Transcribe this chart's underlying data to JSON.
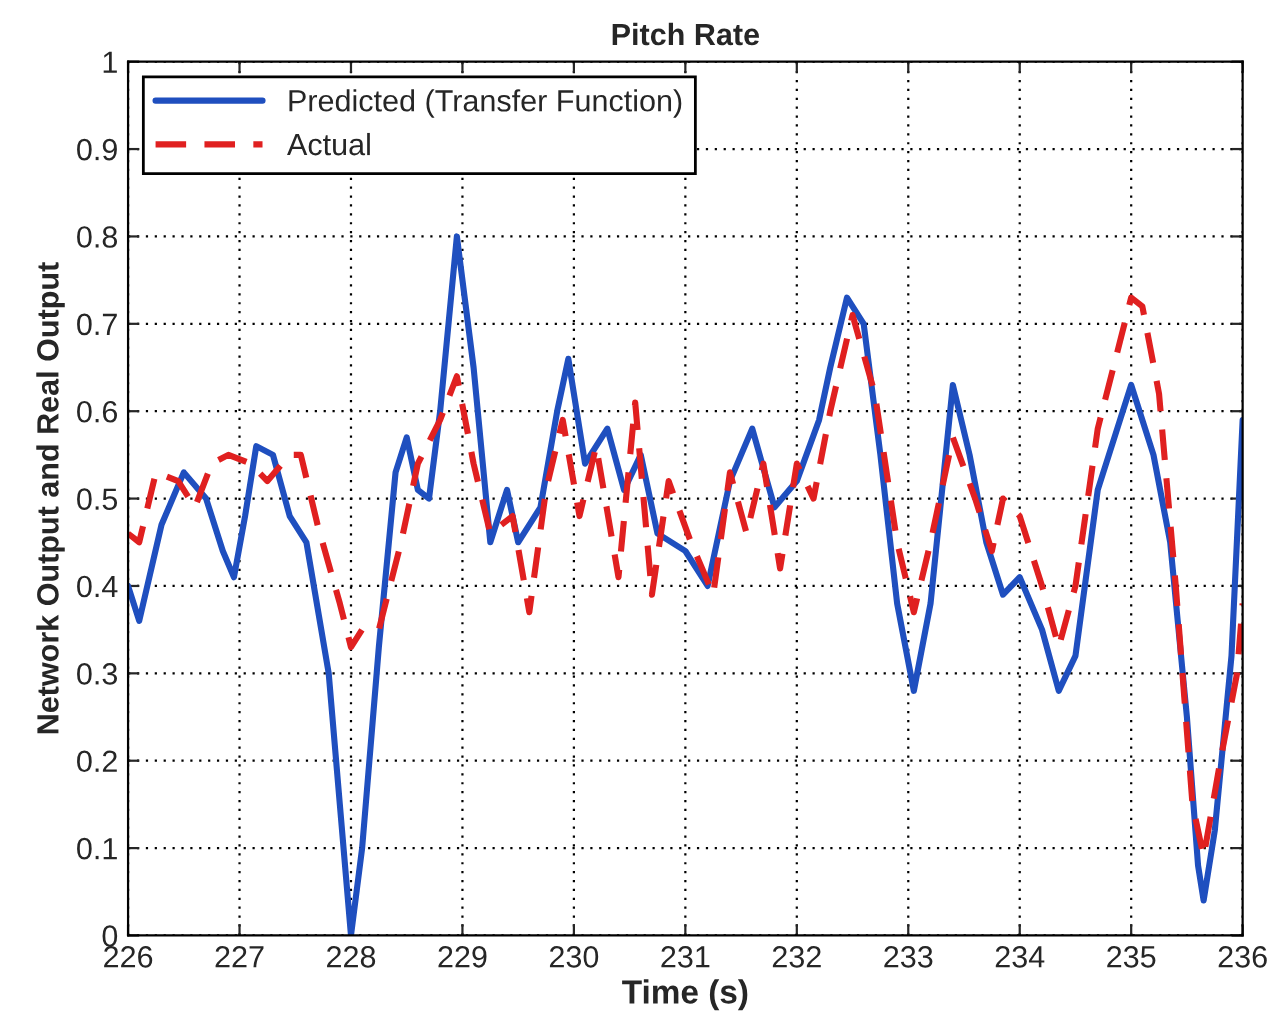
{
  "chart_data": {
    "type": "line",
    "title": "Pitch Rate",
    "xlabel": "Time (s)",
    "ylabel": "Network Output and Real Output",
    "xlim": [
      226,
      236
    ],
    "ylim": [
      0,
      1
    ],
    "xticks": [
      226,
      227,
      228,
      229,
      230,
      231,
      232,
      233,
      234,
      235,
      236
    ],
    "yticks": [
      0,
      0.1,
      0.2,
      0.3,
      0.4,
      0.5,
      0.6,
      0.7,
      0.8,
      0.9,
      1
    ],
    "grid": true,
    "legend": "top left",
    "marker": "none",
    "series": [
      {
        "name": "Predicted (Transfer Function)",
        "color": "#1f4fbf",
        "line_style": "solid",
        "x": [
          226.0,
          226.1,
          226.3,
          226.5,
          226.7,
          226.85,
          226.95,
          227.05,
          227.15,
          227.3,
          227.45,
          227.6,
          227.8,
          227.9,
          228.0,
          228.1,
          228.25,
          228.4,
          228.5,
          228.6,
          228.7,
          228.8,
          228.95,
          229.1,
          229.25,
          229.4,
          229.5,
          229.7,
          229.85,
          229.95,
          230.1,
          230.3,
          230.45,
          230.6,
          230.75,
          231.0,
          231.2,
          231.4,
          231.6,
          231.8,
          232.0,
          232.2,
          232.3,
          232.45,
          232.6,
          232.75,
          232.9,
          233.05,
          233.2,
          233.4,
          233.55,
          233.7,
          233.85,
          234.0,
          234.2,
          234.35,
          234.5,
          234.7,
          234.9,
          235.0,
          235.2,
          235.35,
          235.5,
          235.6,
          235.65,
          235.75,
          235.9,
          236.0
        ],
        "values": [
          0.4,
          0.36,
          0.47,
          0.53,
          0.5,
          0.44,
          0.41,
          0.48,
          0.56,
          0.55,
          0.48,
          0.45,
          0.3,
          0.15,
          0.0,
          0.1,
          0.33,
          0.53,
          0.57,
          0.51,
          0.5,
          0.6,
          0.8,
          0.65,
          0.45,
          0.51,
          0.45,
          0.49,
          0.6,
          0.66,
          0.54,
          0.58,
          0.51,
          0.55,
          0.46,
          0.44,
          0.4,
          0.52,
          0.58,
          0.49,
          0.52,
          0.59,
          0.65,
          0.73,
          0.7,
          0.55,
          0.38,
          0.28,
          0.38,
          0.63,
          0.55,
          0.45,
          0.39,
          0.41,
          0.35,
          0.28,
          0.32,
          0.51,
          0.59,
          0.63,
          0.55,
          0.45,
          0.25,
          0.08,
          0.04,
          0.12,
          0.32,
          0.59
        ]
      },
      {
        "name": "Actual",
        "color": "#e02020",
        "line_style": "dashed",
        "x": [
          226.0,
          226.1,
          226.25,
          226.45,
          226.6,
          226.75,
          226.9,
          227.1,
          227.25,
          227.45,
          227.55,
          227.7,
          227.9,
          228.0,
          228.1,
          228.25,
          228.45,
          228.6,
          228.8,
          228.95,
          229.1,
          229.25,
          229.45,
          229.6,
          229.75,
          229.9,
          230.05,
          230.2,
          230.4,
          230.55,
          230.7,
          230.85,
          231.05,
          231.25,
          231.4,
          231.55,
          231.7,
          231.85,
          232.0,
          232.15,
          232.3,
          232.5,
          232.7,
          232.9,
          233.05,
          233.2,
          233.4,
          233.6,
          233.75,
          233.85,
          234.0,
          234.2,
          234.35,
          234.5,
          234.7,
          234.9,
          235.0,
          235.1,
          235.25,
          235.4,
          235.55,
          235.65,
          235.8,
          235.95,
          236.0
        ],
        "values": [
          0.46,
          0.45,
          0.53,
          0.52,
          0.49,
          0.54,
          0.55,
          0.54,
          0.52,
          0.55,
          0.55,
          0.47,
          0.38,
          0.33,
          0.35,
          0.35,
          0.45,
          0.54,
          0.59,
          0.64,
          0.54,
          0.46,
          0.48,
          0.37,
          0.51,
          0.59,
          0.48,
          0.56,
          0.41,
          0.61,
          0.39,
          0.52,
          0.45,
          0.39,
          0.53,
          0.46,
          0.54,
          0.42,
          0.54,
          0.5,
          0.6,
          0.71,
          0.62,
          0.45,
          0.37,
          0.45,
          0.57,
          0.5,
          0.44,
          0.5,
          0.48,
          0.4,
          0.33,
          0.4,
          0.58,
          0.68,
          0.73,
          0.72,
          0.62,
          0.4,
          0.15,
          0.09,
          0.2,
          0.3,
          0.38
        ]
      }
    ]
  }
}
